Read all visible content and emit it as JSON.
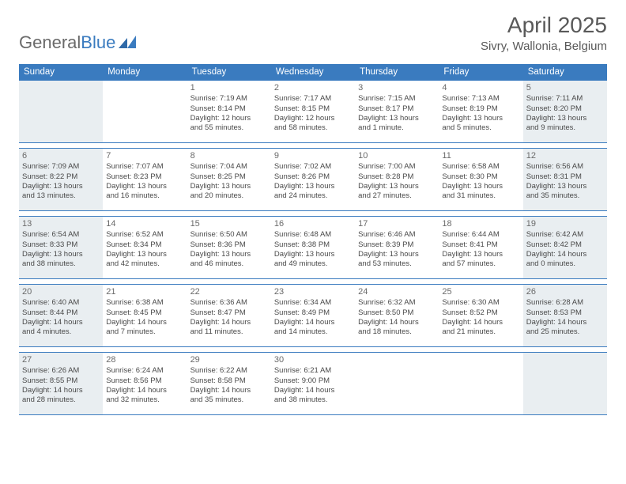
{
  "logo": {
    "text_general": "General",
    "text_blue": "Blue"
  },
  "header": {
    "month_title": "April 2025",
    "location": "Sivry, Wallonia, Belgium"
  },
  "colors": {
    "header_bg": "#3a7bbf",
    "shaded_bg": "#e9eef1",
    "body_bg": "#ffffff",
    "text": "#4a4a4a",
    "title_text": "#595959"
  },
  "day_names": [
    "Sunday",
    "Monday",
    "Tuesday",
    "Wednesday",
    "Thursday",
    "Friday",
    "Saturday"
  ],
  "weeks": [
    [
      {
        "day": "",
        "sunrise": "",
        "sunset": "",
        "daylight_a": "",
        "daylight_b": "",
        "shaded": true
      },
      {
        "day": "",
        "sunrise": "",
        "sunset": "",
        "daylight_a": "",
        "daylight_b": "",
        "shaded": false
      },
      {
        "day": "1",
        "sunrise": "Sunrise: 7:19 AM",
        "sunset": "Sunset: 8:14 PM",
        "daylight_a": "Daylight: 12 hours",
        "daylight_b": "and 55 minutes.",
        "shaded": false
      },
      {
        "day": "2",
        "sunrise": "Sunrise: 7:17 AM",
        "sunset": "Sunset: 8:15 PM",
        "daylight_a": "Daylight: 12 hours",
        "daylight_b": "and 58 minutes.",
        "shaded": false
      },
      {
        "day": "3",
        "sunrise": "Sunrise: 7:15 AM",
        "sunset": "Sunset: 8:17 PM",
        "daylight_a": "Daylight: 13 hours",
        "daylight_b": "and 1 minute.",
        "shaded": false
      },
      {
        "day": "4",
        "sunrise": "Sunrise: 7:13 AM",
        "sunset": "Sunset: 8:19 PM",
        "daylight_a": "Daylight: 13 hours",
        "daylight_b": "and 5 minutes.",
        "shaded": false
      },
      {
        "day": "5",
        "sunrise": "Sunrise: 7:11 AM",
        "sunset": "Sunset: 8:20 PM",
        "daylight_a": "Daylight: 13 hours",
        "daylight_b": "and 9 minutes.",
        "shaded": true
      }
    ],
    [
      {
        "day": "6",
        "sunrise": "Sunrise: 7:09 AM",
        "sunset": "Sunset: 8:22 PM",
        "daylight_a": "Daylight: 13 hours",
        "daylight_b": "and 13 minutes.",
        "shaded": true
      },
      {
        "day": "7",
        "sunrise": "Sunrise: 7:07 AM",
        "sunset": "Sunset: 8:23 PM",
        "daylight_a": "Daylight: 13 hours",
        "daylight_b": "and 16 minutes.",
        "shaded": false
      },
      {
        "day": "8",
        "sunrise": "Sunrise: 7:04 AM",
        "sunset": "Sunset: 8:25 PM",
        "daylight_a": "Daylight: 13 hours",
        "daylight_b": "and 20 minutes.",
        "shaded": false
      },
      {
        "day": "9",
        "sunrise": "Sunrise: 7:02 AM",
        "sunset": "Sunset: 8:26 PM",
        "daylight_a": "Daylight: 13 hours",
        "daylight_b": "and 24 minutes.",
        "shaded": false
      },
      {
        "day": "10",
        "sunrise": "Sunrise: 7:00 AM",
        "sunset": "Sunset: 8:28 PM",
        "daylight_a": "Daylight: 13 hours",
        "daylight_b": "and 27 minutes.",
        "shaded": false
      },
      {
        "day": "11",
        "sunrise": "Sunrise: 6:58 AM",
        "sunset": "Sunset: 8:30 PM",
        "daylight_a": "Daylight: 13 hours",
        "daylight_b": "and 31 minutes.",
        "shaded": false
      },
      {
        "day": "12",
        "sunrise": "Sunrise: 6:56 AM",
        "sunset": "Sunset: 8:31 PM",
        "daylight_a": "Daylight: 13 hours",
        "daylight_b": "and 35 minutes.",
        "shaded": true
      }
    ],
    [
      {
        "day": "13",
        "sunrise": "Sunrise: 6:54 AM",
        "sunset": "Sunset: 8:33 PM",
        "daylight_a": "Daylight: 13 hours",
        "daylight_b": "and 38 minutes.",
        "shaded": true
      },
      {
        "day": "14",
        "sunrise": "Sunrise: 6:52 AM",
        "sunset": "Sunset: 8:34 PM",
        "daylight_a": "Daylight: 13 hours",
        "daylight_b": "and 42 minutes.",
        "shaded": false
      },
      {
        "day": "15",
        "sunrise": "Sunrise: 6:50 AM",
        "sunset": "Sunset: 8:36 PM",
        "daylight_a": "Daylight: 13 hours",
        "daylight_b": "and 46 minutes.",
        "shaded": false
      },
      {
        "day": "16",
        "sunrise": "Sunrise: 6:48 AM",
        "sunset": "Sunset: 8:38 PM",
        "daylight_a": "Daylight: 13 hours",
        "daylight_b": "and 49 minutes.",
        "shaded": false
      },
      {
        "day": "17",
        "sunrise": "Sunrise: 6:46 AM",
        "sunset": "Sunset: 8:39 PM",
        "daylight_a": "Daylight: 13 hours",
        "daylight_b": "and 53 minutes.",
        "shaded": false
      },
      {
        "day": "18",
        "sunrise": "Sunrise: 6:44 AM",
        "sunset": "Sunset: 8:41 PM",
        "daylight_a": "Daylight: 13 hours",
        "daylight_b": "and 57 minutes.",
        "shaded": false
      },
      {
        "day": "19",
        "sunrise": "Sunrise: 6:42 AM",
        "sunset": "Sunset: 8:42 PM",
        "daylight_a": "Daylight: 14 hours",
        "daylight_b": "and 0 minutes.",
        "shaded": true
      }
    ],
    [
      {
        "day": "20",
        "sunrise": "Sunrise: 6:40 AM",
        "sunset": "Sunset: 8:44 PM",
        "daylight_a": "Daylight: 14 hours",
        "daylight_b": "and 4 minutes.",
        "shaded": true
      },
      {
        "day": "21",
        "sunrise": "Sunrise: 6:38 AM",
        "sunset": "Sunset: 8:45 PM",
        "daylight_a": "Daylight: 14 hours",
        "daylight_b": "and 7 minutes.",
        "shaded": false
      },
      {
        "day": "22",
        "sunrise": "Sunrise: 6:36 AM",
        "sunset": "Sunset: 8:47 PM",
        "daylight_a": "Daylight: 14 hours",
        "daylight_b": "and 11 minutes.",
        "shaded": false
      },
      {
        "day": "23",
        "sunrise": "Sunrise: 6:34 AM",
        "sunset": "Sunset: 8:49 PM",
        "daylight_a": "Daylight: 14 hours",
        "daylight_b": "and 14 minutes.",
        "shaded": false
      },
      {
        "day": "24",
        "sunrise": "Sunrise: 6:32 AM",
        "sunset": "Sunset: 8:50 PM",
        "daylight_a": "Daylight: 14 hours",
        "daylight_b": "and 18 minutes.",
        "shaded": false
      },
      {
        "day": "25",
        "sunrise": "Sunrise: 6:30 AM",
        "sunset": "Sunset: 8:52 PM",
        "daylight_a": "Daylight: 14 hours",
        "daylight_b": "and 21 minutes.",
        "shaded": false
      },
      {
        "day": "26",
        "sunrise": "Sunrise: 6:28 AM",
        "sunset": "Sunset: 8:53 PM",
        "daylight_a": "Daylight: 14 hours",
        "daylight_b": "and 25 minutes.",
        "shaded": true
      }
    ],
    [
      {
        "day": "27",
        "sunrise": "Sunrise: 6:26 AM",
        "sunset": "Sunset: 8:55 PM",
        "daylight_a": "Daylight: 14 hours",
        "daylight_b": "and 28 minutes.",
        "shaded": true
      },
      {
        "day": "28",
        "sunrise": "Sunrise: 6:24 AM",
        "sunset": "Sunset: 8:56 PM",
        "daylight_a": "Daylight: 14 hours",
        "daylight_b": "and 32 minutes.",
        "shaded": false
      },
      {
        "day": "29",
        "sunrise": "Sunrise: 6:22 AM",
        "sunset": "Sunset: 8:58 PM",
        "daylight_a": "Daylight: 14 hours",
        "daylight_b": "and 35 minutes.",
        "shaded": false
      },
      {
        "day": "30",
        "sunrise": "Sunrise: 6:21 AM",
        "sunset": "Sunset: 9:00 PM",
        "daylight_a": "Daylight: 14 hours",
        "daylight_b": "and 38 minutes.",
        "shaded": false
      },
      {
        "day": "",
        "sunrise": "",
        "sunset": "",
        "daylight_a": "",
        "daylight_b": "",
        "shaded": false
      },
      {
        "day": "",
        "sunrise": "",
        "sunset": "",
        "daylight_a": "",
        "daylight_b": "",
        "shaded": false
      },
      {
        "day": "",
        "sunrise": "",
        "sunset": "",
        "daylight_a": "",
        "daylight_b": "",
        "shaded": true
      }
    ]
  ]
}
